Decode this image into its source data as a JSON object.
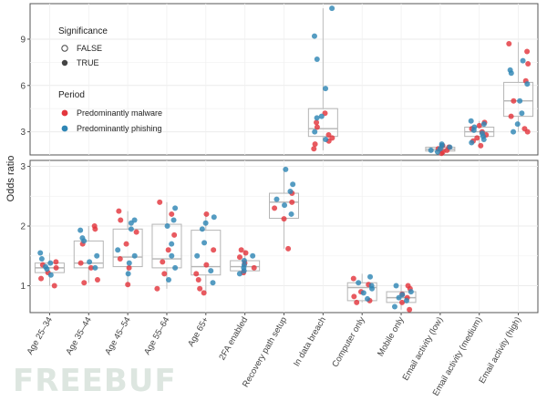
{
  "chart_data": {
    "type": "boxplot-with-jittered-points",
    "ylabel": "Odds ratio",
    "categories": [
      "Age 25–34",
      "Age 35–44",
      "Age 45–54",
      "Age 55–64",
      "Age 65+",
      "2FA enabled",
      "Recovery path setup",
      "In data breach",
      "Computer only",
      "Mobile only",
      "Email activity (low)",
      "Email activity (medium)",
      "Email activity (high)"
    ],
    "legend": {
      "position": "top-left",
      "significance_title": "Significance",
      "significance_items": [
        {
          "label": "FALSE",
          "style": "open-circle"
        },
        {
          "label": "TRUE",
          "style": "filled-circle"
        }
      ],
      "period_title": "Period",
      "period_items": [
        {
          "label": "Predominantly malware",
          "color": "#e3363d"
        },
        {
          "label": "Predominantly phishing",
          "color": "#2f86b5"
        }
      ]
    },
    "panels": [
      {
        "name": "top",
        "ylim": [
          1.5,
          11.3
        ],
        "yticks": [
          3,
          6,
          9
        ],
        "boxes": [
          {
            "category": "In data breach",
            "q1": 2.7,
            "median": 3.2,
            "q3": 4.5,
            "whisker_low": 1.8,
            "whisker_high": 11.0
          },
          {
            "category": "Email activity (low)",
            "q1": 1.75,
            "median": 1.87,
            "q3": 2.0,
            "whisker_low": 1.6,
            "whisker_high": 2.3
          },
          {
            "category": "Email activity (medium)",
            "q1": 2.7,
            "median": 3.0,
            "q3": 3.3,
            "whisker_low": 2.0,
            "whisker_high": 3.7
          },
          {
            "category": "Email activity (high)",
            "q1": 4.0,
            "median": 5.0,
            "q3": 6.2,
            "whisker_low": 3.0,
            "whisker_high": 8.8
          }
        ],
        "points": {
          "In data breach": {
            "malware": [
              1.9,
              2.2,
              2.4,
              2.6,
              2.8,
              3.3,
              3.6,
              4.2
            ],
            "phishing": [
              2.5,
              3.0,
              3.9,
              4.0,
              5.8,
              7.7,
              9.2,
              11.0
            ]
          },
          "Email activity (low)": {
            "malware": [
              1.6,
              1.7,
              1.8,
              1.9,
              2.0,
              2.1
            ],
            "phishing": [
              1.7,
              1.8,
              1.9,
              2.0,
              2.1,
              2.2
            ]
          },
          "Email activity (medium)": {
            "malware": [
              2.1,
              2.4,
              2.6,
              2.8,
              3.0,
              3.2,
              3.4,
              3.6
            ],
            "phishing": [
              2.3,
              2.5,
              2.7,
              2.9,
              3.1,
              3.3,
              3.5,
              3.7
            ]
          },
          "Email activity (high)": {
            "malware": [
              3.0,
              3.2,
              4.0,
              5.0,
              6.3,
              7.4,
              8.2,
              8.7
            ],
            "phishing": [
              3.0,
              3.5,
              4.2,
              5.0,
              6.1,
              6.8,
              7.0,
              7.6
            ]
          }
        }
      },
      {
        "name": "bottom",
        "ylim": [
          0.55,
          3.1
        ],
        "yticks": [
          1,
          2,
          3
        ],
        "boxes": [
          {
            "category": "Age 25–34",
            "q1": 1.22,
            "median": 1.3,
            "q3": 1.38,
            "whisker_low": 1.0,
            "whisker_high": 1.55
          },
          {
            "category": "Age 35–44",
            "q1": 1.3,
            "median": 1.38,
            "q3": 1.75,
            "whisker_low": 1.05,
            "whisker_high": 2.0
          },
          {
            "category": "Age 45–54",
            "q1": 1.32,
            "median": 1.48,
            "q3": 1.95,
            "whisker_low": 1.0,
            "whisker_high": 2.25
          },
          {
            "category": "Age 55–64",
            "q1": 1.3,
            "median": 1.45,
            "q3": 2.03,
            "whisker_low": 0.95,
            "whisker_high": 2.4
          },
          {
            "category": "Age 65+",
            "q1": 1.18,
            "median": 1.32,
            "q3": 1.93,
            "whisker_low": 0.88,
            "whisker_high": 2.2
          },
          {
            "category": "2FA enabled",
            "q1": 1.25,
            "median": 1.32,
            "q3": 1.42,
            "whisker_low": 1.18,
            "whisker_high": 1.6
          },
          {
            "category": "Recovery path setup",
            "q1": 2.13,
            "median": 2.4,
            "q3": 2.55,
            "whisker_low": 1.62,
            "whisker_high": 2.95
          },
          {
            "category": "Computer only",
            "q1": 0.75,
            "median": 0.97,
            "q3": 1.05,
            "whisker_low": 0.72,
            "whisker_high": 1.2
          },
          {
            "category": "Mobile only",
            "q1": 0.72,
            "median": 0.8,
            "q3": 0.9,
            "whisker_low": 0.6,
            "whisker_high": 1.02
          }
        ],
        "points": {
          "Age 25–34": {
            "malware": [
              1.0,
              1.12,
              1.22,
              1.3,
              1.35,
              1.4
            ],
            "phishing": [
              1.18,
              1.28,
              1.32,
              1.38,
              1.45,
              1.55
            ]
          },
          "Age 35–44": {
            "malware": [
              1.05,
              1.1,
              1.3,
              1.38,
              1.7,
              1.95,
              2.0
            ],
            "phishing": [
              1.3,
              1.4,
              1.5,
              1.75,
              1.8,
              1.93
            ]
          },
          "Age 45–54": {
            "malware": [
              1.02,
              1.3,
              1.45,
              1.7,
              1.9,
              2.1,
              2.25
            ],
            "phishing": [
              1.2,
              1.38,
              1.5,
              1.6,
              1.95,
              2.05,
              2.1
            ]
          },
          "Age 55–64": {
            "malware": [
              0.95,
              1.2,
              1.4,
              1.6,
              1.85,
              2.2,
              2.4
            ],
            "phishing": [
              1.1,
              1.3,
              1.5,
              1.7,
              2.0,
              2.1,
              2.3
            ]
          },
          "Age 65+": {
            "malware": [
              0.88,
              0.95,
              1.1,
              1.2,
              1.35,
              1.6,
              2.2
            ],
            "phishing": [
              1.05,
              1.25,
              1.5,
              1.72,
              1.95,
              2.05,
              2.15
            ]
          },
          "2FA enabled": {
            "malware": [
              1.22,
              1.3,
              1.38,
              1.48,
              1.55,
              1.6
            ],
            "phishing": [
              1.2,
              1.25,
              1.3,
              1.35,
              1.42,
              1.5
            ]
          },
          "Recovery path setup": {
            "malware": [
              1.62,
              2.12,
              2.3,
              2.4,
              2.55
            ],
            "phishing": [
              2.2,
              2.35,
              2.45,
              2.58,
              2.7,
              2.95
            ]
          },
          "Computer only": {
            "malware": [
              0.72,
              0.75,
              0.82,
              0.9,
              1.02,
              1.12
            ],
            "phishing": [
              0.78,
              0.88,
              0.95,
              1.0,
              1.05,
              1.15
            ]
          },
          "Mobile only": {
            "malware": [
              0.6,
              0.72,
              0.8,
              0.86,
              0.95,
              1.0
            ],
            "phishing": [
              0.65,
              0.75,
              0.8,
              0.85,
              0.9,
              1.0
            ]
          }
        }
      }
    ]
  },
  "watermark": "FREEBUF"
}
